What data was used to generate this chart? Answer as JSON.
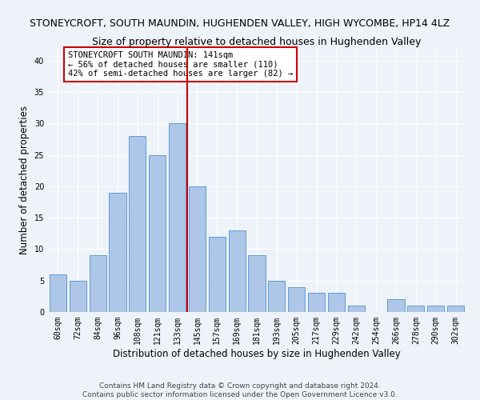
{
  "title": "STONEYCROFT, SOUTH MAUNDIN, HUGHENDEN VALLEY, HIGH WYCOMBE, HP14 4LZ",
  "subtitle": "Size of property relative to detached houses in Hughenden Valley",
  "xlabel": "Distribution of detached houses by size in Hughenden Valley",
  "ylabel": "Number of detached properties",
  "categories": [
    "60sqm",
    "72sqm",
    "84sqm",
    "96sqm",
    "108sqm",
    "121sqm",
    "133sqm",
    "145sqm",
    "157sqm",
    "169sqm",
    "181sqm",
    "193sqm",
    "205sqm",
    "217sqm",
    "229sqm",
    "242sqm",
    "254sqm",
    "266sqm",
    "278sqm",
    "290sqm",
    "302sqm"
  ],
  "values": [
    6,
    5,
    9,
    19,
    28,
    25,
    30,
    20,
    12,
    13,
    9,
    5,
    4,
    3,
    3,
    1,
    0,
    2,
    1,
    1,
    1
  ],
  "bar_color": "#aec6e8",
  "bar_edge_color": "#5b9bd5",
  "vline_x_index": 7.0,
  "vline_color": "#cc0000",
  "annotation_text": "STONEYCROFT SOUTH MAUNDIN: 141sqm\n← 56% of detached houses are smaller (110)\n42% of semi-detached houses are larger (82) →",
  "annotation_box_color": "#ffffff",
  "annotation_box_edge_color": "#cc0000",
  "ylim": [
    0,
    42
  ],
  "yticks": [
    0,
    5,
    10,
    15,
    20,
    25,
    30,
    35,
    40
  ],
  "background_color": "#eef3fa",
  "plot_background_color": "#eef3fa",
  "footer_line1": "Contains HM Land Registry data © Crown copyright and database right 2024.",
  "footer_line2": "Contains public sector information licensed under the Open Government Licence v3.0.",
  "title_fontsize": 9,
  "subtitle_fontsize": 9,
  "xlabel_fontsize": 8.5,
  "ylabel_fontsize": 8.5,
  "tick_fontsize": 7,
  "annotation_fontsize": 7.5,
  "footer_fontsize": 6.5
}
